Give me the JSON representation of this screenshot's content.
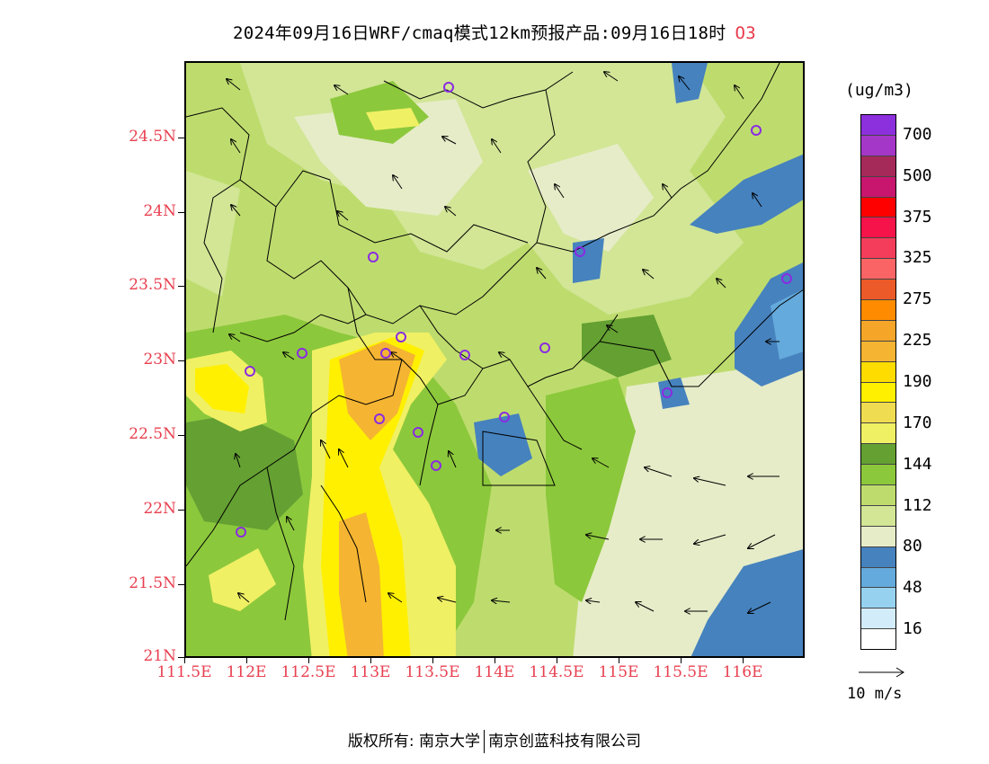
{
  "title": {
    "main": "2024年09月16日WRF/cmaq模式12km预报产品:09月16日18时",
    "species": "O3"
  },
  "map": {
    "lat_labels": [
      "24.5N",
      "24N",
      "23.5N",
      "23N",
      "22.5N",
      "22N",
      "21.5N",
      "21N"
    ],
    "lon_labels": [
      "111.5E",
      "112E",
      "112.5E",
      "113E",
      "113.5E",
      "114E",
      "114.5E",
      "115E",
      "115.5E",
      "116E"
    ]
  },
  "legend": {
    "unit": "(ug/m3)",
    "labels": [
      "700",
      "500",
      "375",
      "325",
      "275",
      "225",
      "190",
      "170",
      "144",
      "112",
      "80",
      "48",
      "16"
    ],
    "colors": [
      "#8c2fdc",
      "#a436c8",
      "#a52a5a",
      "#c8166e",
      "#ff0000",
      "#f5134a",
      "#f43d5a",
      "#fa6464",
      "#eb5a28",
      "#ff8c00",
      "#f5a528",
      "#f5b432",
      "#ffdc00",
      "#fff000",
      "#f0dc50",
      "#f0f064",
      "#64a032",
      "#8cc83c",
      "#bedc6e",
      "#d2e696",
      "#e6ecc8",
      "#4682be",
      "#64aadc",
      "#96d2f0",
      "#d2ecfa",
      "#ffffff"
    ],
    "wind_ref_label": "10 m/s"
  },
  "footer": {
    "copyright_left": "版权所有: 南京大学",
    "copyright_right": "南京创蓝科技有限公司"
  },
  "colors": {
    "axis_label": "#e84050",
    "station_marker": "#8a2be2"
  }
}
